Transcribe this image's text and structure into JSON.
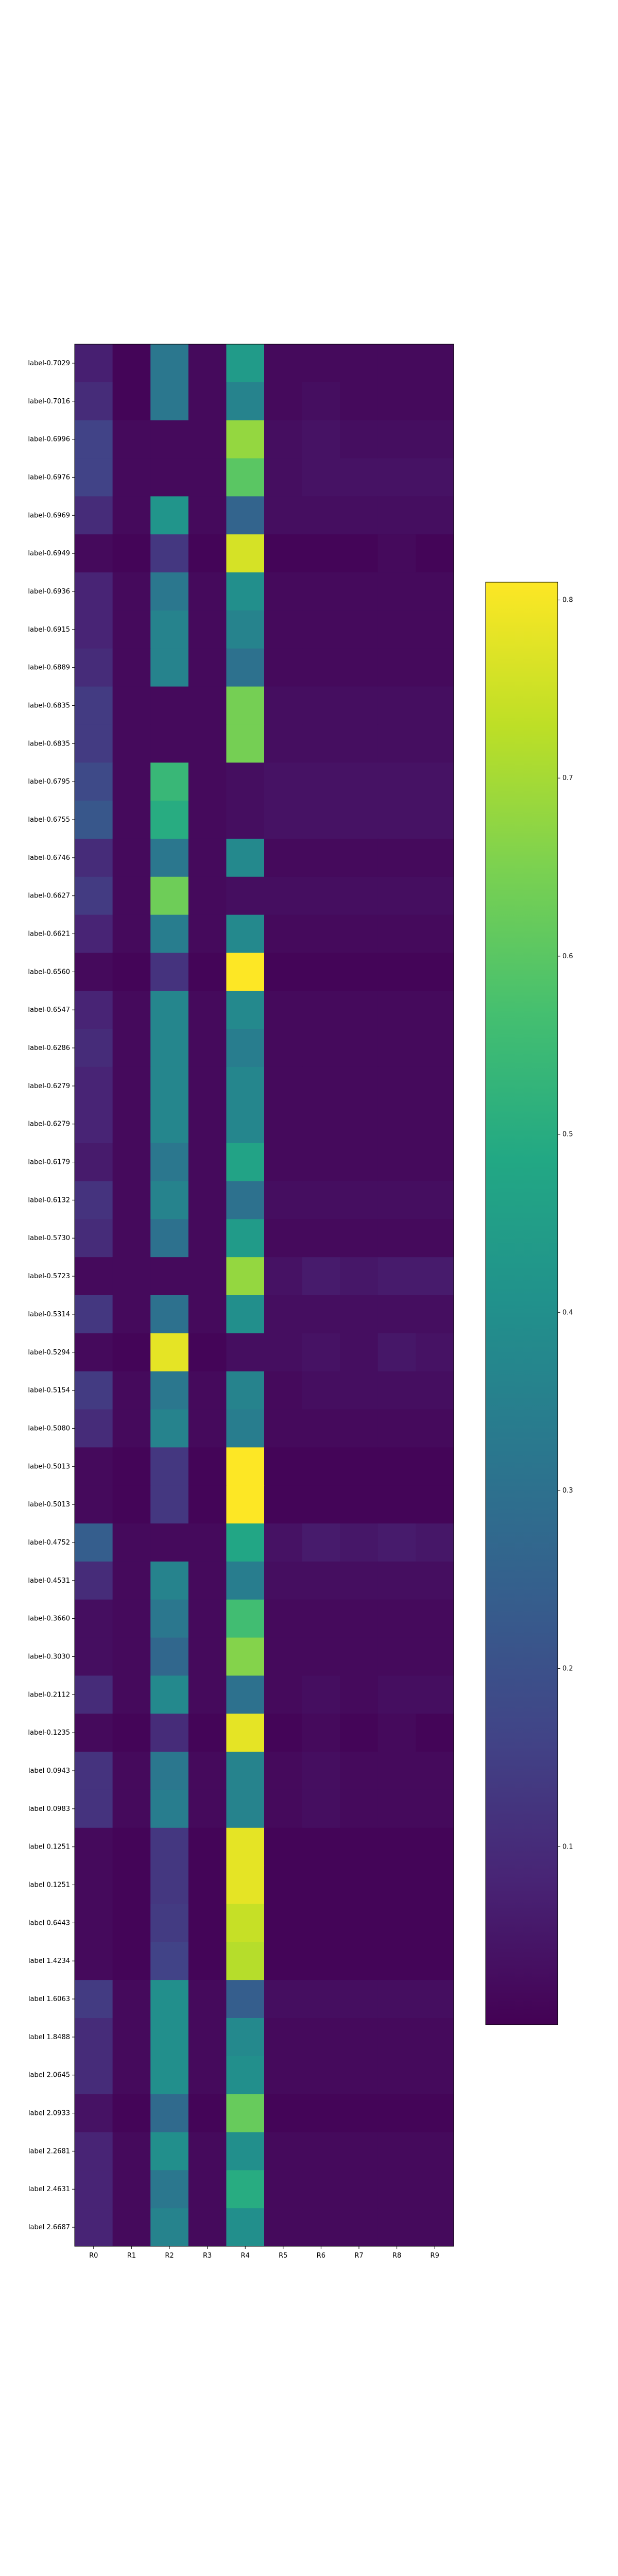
{
  "chart_data": {
    "type": "heatmap",
    "title": "",
    "xlabel": "",
    "ylabel": "",
    "columns": [
      "R0",
      "R1",
      "R2",
      "R3",
      "R4",
      "R5",
      "R6",
      "R7",
      "R8",
      "R9"
    ],
    "rows": [
      "label-0.7029",
      "label-0.7016",
      "label-0.6996",
      "label-0.6976",
      "label-0.6969",
      "label-0.6949",
      "label-0.6936",
      "label-0.6915",
      "label-0.6889",
      "label-0.6835",
      "label-0.6835",
      "label-0.6795",
      "label-0.6755",
      "label-0.6746",
      "label-0.6627",
      "label-0.6621",
      "label-0.6560",
      "label-0.6547",
      "label-0.6286",
      "label-0.6279",
      "label-0.6279",
      "label-0.6179",
      "label-0.6132",
      "label-0.5730",
      "label-0.5723",
      "label-0.5314",
      "label-0.5294",
      "label-0.5154",
      "label-0.5080",
      "label-0.5013",
      "label-0.5013",
      "label-0.4752",
      "label-0.4531",
      "label-0.3660",
      "label-0.3030",
      "label-0.2112",
      "label-0.1235",
      "label 0.0943",
      "label 0.0983",
      "label 0.1251",
      "label 0.1251",
      "label 0.6443",
      "label 1.4234",
      "label 1.6063",
      "label 1.8488",
      "label 2.0645",
      "label 2.0933",
      "label 2.2681",
      "label 2.4631",
      "label 2.6687"
    ],
    "values": [
      [
        0.07,
        0.01,
        0.32,
        0.02,
        0.44,
        0.02,
        0.02,
        0.02,
        0.02,
        0.02
      ],
      [
        0.1,
        0.01,
        0.32,
        0.02,
        0.36,
        0.02,
        0.03,
        0.02,
        0.02,
        0.02
      ],
      [
        0.16,
        0.02,
        0.02,
        0.02,
        0.68,
        0.03,
        0.04,
        0.03,
        0.03,
        0.03
      ],
      [
        0.16,
        0.02,
        0.02,
        0.02,
        0.6,
        0.03,
        0.04,
        0.04,
        0.04,
        0.04
      ],
      [
        0.1,
        0.02,
        0.42,
        0.02,
        0.26,
        0.03,
        0.03,
        0.03,
        0.03,
        0.03
      ],
      [
        0.02,
        0.01,
        0.13,
        0.01,
        0.76,
        0.01,
        0.01,
        0.01,
        0.02,
        0.01
      ],
      [
        0.08,
        0.02,
        0.32,
        0.02,
        0.4,
        0.02,
        0.02,
        0.02,
        0.02,
        0.02
      ],
      [
        0.08,
        0.02,
        0.36,
        0.02,
        0.36,
        0.02,
        0.02,
        0.02,
        0.02,
        0.02
      ],
      [
        0.1,
        0.02,
        0.36,
        0.02,
        0.3,
        0.02,
        0.02,
        0.02,
        0.02,
        0.02
      ],
      [
        0.14,
        0.02,
        0.02,
        0.02,
        0.64,
        0.03,
        0.03,
        0.03,
        0.03,
        0.03
      ],
      [
        0.14,
        0.02,
        0.02,
        0.02,
        0.64,
        0.03,
        0.03,
        0.03,
        0.03,
        0.03
      ],
      [
        0.18,
        0.02,
        0.54,
        0.02,
        0.03,
        0.04,
        0.04,
        0.04,
        0.04,
        0.04
      ],
      [
        0.22,
        0.02,
        0.5,
        0.02,
        0.03,
        0.04,
        0.04,
        0.04,
        0.04,
        0.04
      ],
      [
        0.1,
        0.02,
        0.32,
        0.02,
        0.38,
        0.02,
        0.02,
        0.02,
        0.02,
        0.02
      ],
      [
        0.14,
        0.02,
        0.63,
        0.02,
        0.03,
        0.03,
        0.03,
        0.03,
        0.03,
        0.03
      ],
      [
        0.08,
        0.02,
        0.34,
        0.02,
        0.38,
        0.02,
        0.02,
        0.02,
        0.02,
        0.02
      ],
      [
        0.02,
        0.01,
        0.12,
        0.01,
        0.81,
        0.01,
        0.01,
        0.01,
        0.01,
        0.01
      ],
      [
        0.08,
        0.02,
        0.37,
        0.02,
        0.38,
        0.02,
        0.02,
        0.02,
        0.02,
        0.02
      ],
      [
        0.1,
        0.02,
        0.37,
        0.02,
        0.34,
        0.02,
        0.02,
        0.02,
        0.02,
        0.02
      ],
      [
        0.08,
        0.02,
        0.37,
        0.02,
        0.37,
        0.02,
        0.02,
        0.02,
        0.02,
        0.02
      ],
      [
        0.08,
        0.02,
        0.37,
        0.02,
        0.37,
        0.02,
        0.02,
        0.02,
        0.02,
        0.02
      ],
      [
        0.06,
        0.02,
        0.32,
        0.02,
        0.47,
        0.02,
        0.02,
        0.02,
        0.02,
        0.02
      ],
      [
        0.12,
        0.02,
        0.36,
        0.02,
        0.3,
        0.03,
        0.03,
        0.03,
        0.03,
        0.03
      ],
      [
        0.1,
        0.02,
        0.3,
        0.02,
        0.44,
        0.02,
        0.02,
        0.02,
        0.02,
        0.02
      ],
      [
        0.02,
        0.02,
        0.02,
        0.02,
        0.68,
        0.04,
        0.06,
        0.05,
        0.06,
        0.06
      ],
      [
        0.13,
        0.02,
        0.3,
        0.02,
        0.4,
        0.03,
        0.03,
        0.03,
        0.03,
        0.03
      ],
      [
        0.02,
        0.01,
        0.78,
        0.01,
        0.03,
        0.03,
        0.04,
        0.03,
        0.05,
        0.04
      ],
      [
        0.14,
        0.02,
        0.32,
        0.02,
        0.36,
        0.02,
        0.03,
        0.03,
        0.03,
        0.03
      ],
      [
        0.1,
        0.02,
        0.36,
        0.02,
        0.34,
        0.02,
        0.02,
        0.02,
        0.02,
        0.02
      ],
      [
        0.02,
        0.01,
        0.13,
        0.01,
        0.81,
        0.01,
        0.01,
        0.01,
        0.01,
        0.01
      ],
      [
        0.02,
        0.01,
        0.13,
        0.01,
        0.81,
        0.01,
        0.01,
        0.01,
        0.01,
        0.01
      ],
      [
        0.24,
        0.02,
        0.02,
        0.02,
        0.48,
        0.04,
        0.06,
        0.05,
        0.06,
        0.05
      ],
      [
        0.1,
        0.02,
        0.36,
        0.02,
        0.34,
        0.03,
        0.03,
        0.03,
        0.03,
        0.03
      ],
      [
        0.03,
        0.02,
        0.32,
        0.02,
        0.56,
        0.02,
        0.02,
        0.02,
        0.02,
        0.02
      ],
      [
        0.03,
        0.02,
        0.27,
        0.02,
        0.66,
        0.02,
        0.02,
        0.02,
        0.02,
        0.02
      ],
      [
        0.1,
        0.02,
        0.38,
        0.02,
        0.3,
        0.02,
        0.03,
        0.02,
        0.03,
        0.03
      ],
      [
        0.02,
        0.01,
        0.1,
        0.01,
        0.78,
        0.01,
        0.02,
        0.01,
        0.02,
        0.01
      ],
      [
        0.12,
        0.02,
        0.32,
        0.02,
        0.36,
        0.02,
        0.03,
        0.02,
        0.02,
        0.02
      ],
      [
        0.12,
        0.02,
        0.34,
        0.02,
        0.36,
        0.02,
        0.03,
        0.02,
        0.02,
        0.02
      ],
      [
        0.02,
        0.01,
        0.13,
        0.01,
        0.78,
        0.01,
        0.01,
        0.01,
        0.01,
        0.01
      ],
      [
        0.02,
        0.01,
        0.13,
        0.01,
        0.78,
        0.01,
        0.01,
        0.01,
        0.01,
        0.01
      ],
      [
        0.02,
        0.01,
        0.14,
        0.01,
        0.74,
        0.01,
        0.01,
        0.01,
        0.01,
        0.01
      ],
      [
        0.02,
        0.01,
        0.16,
        0.01,
        0.72,
        0.01,
        0.01,
        0.01,
        0.01,
        0.01
      ],
      [
        0.14,
        0.02,
        0.4,
        0.02,
        0.24,
        0.03,
        0.03,
        0.03,
        0.03,
        0.03
      ],
      [
        0.1,
        0.02,
        0.4,
        0.02,
        0.38,
        0.02,
        0.02,
        0.02,
        0.02,
        0.02
      ],
      [
        0.1,
        0.02,
        0.4,
        0.02,
        0.4,
        0.02,
        0.02,
        0.02,
        0.02,
        0.02
      ],
      [
        0.04,
        0.01,
        0.28,
        0.01,
        0.62,
        0.01,
        0.01,
        0.01,
        0.01,
        0.01
      ],
      [
        0.08,
        0.02,
        0.4,
        0.02,
        0.4,
        0.02,
        0.02,
        0.02,
        0.02,
        0.02
      ],
      [
        0.08,
        0.02,
        0.32,
        0.02,
        0.5,
        0.02,
        0.02,
        0.02,
        0.02,
        0.02
      ],
      [
        0.08,
        0.02,
        0.36,
        0.02,
        0.4,
        0.02,
        0.02,
        0.02,
        0.02,
        0.02
      ]
    ],
    "colormap": "viridis",
    "colorbar": {
      "range": [
        0.0,
        0.81
      ],
      "ticks": [
        0.1,
        0.2,
        0.3,
        0.4,
        0.5,
        0.6,
        0.7,
        0.8
      ],
      "tick_labels": [
        "0.1",
        "0.2",
        "0.3",
        "0.4",
        "0.5",
        "0.6",
        "0.7",
        "0.8"
      ]
    },
    "grid": false,
    "legend": "none"
  }
}
